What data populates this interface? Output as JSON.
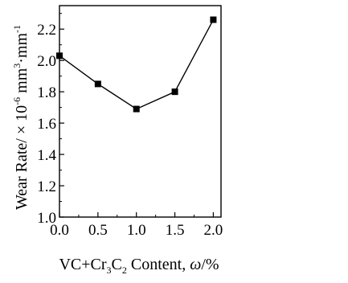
{
  "chart_data": {
    "type": "line",
    "x": [
      0.0,
      0.5,
      1.0,
      1.5,
      2.0
    ],
    "series": [
      {
        "values": [
          2.03,
          1.85,
          1.69,
          1.8,
          2.26
        ]
      }
    ],
    "xlim": [
      0.0,
      2.1
    ],
    "ylim": [
      1.0,
      2.35
    ],
    "xticks": [
      "0.0",
      "0.5",
      "1.0",
      "1.5",
      "2.0"
    ],
    "yticks": [
      "1.0",
      "1.2",
      "1.4",
      "1.6",
      "1.8",
      "2.0",
      "2.2"
    ],
    "xlabel": "VC+Cr3C2 Content, ω/%",
    "ylabel": "Wear Rate/ × 10-6 mm3·mm-1",
    "marker": "square",
    "color": "#000000",
    "grid": false,
    "legend": false
  }
}
